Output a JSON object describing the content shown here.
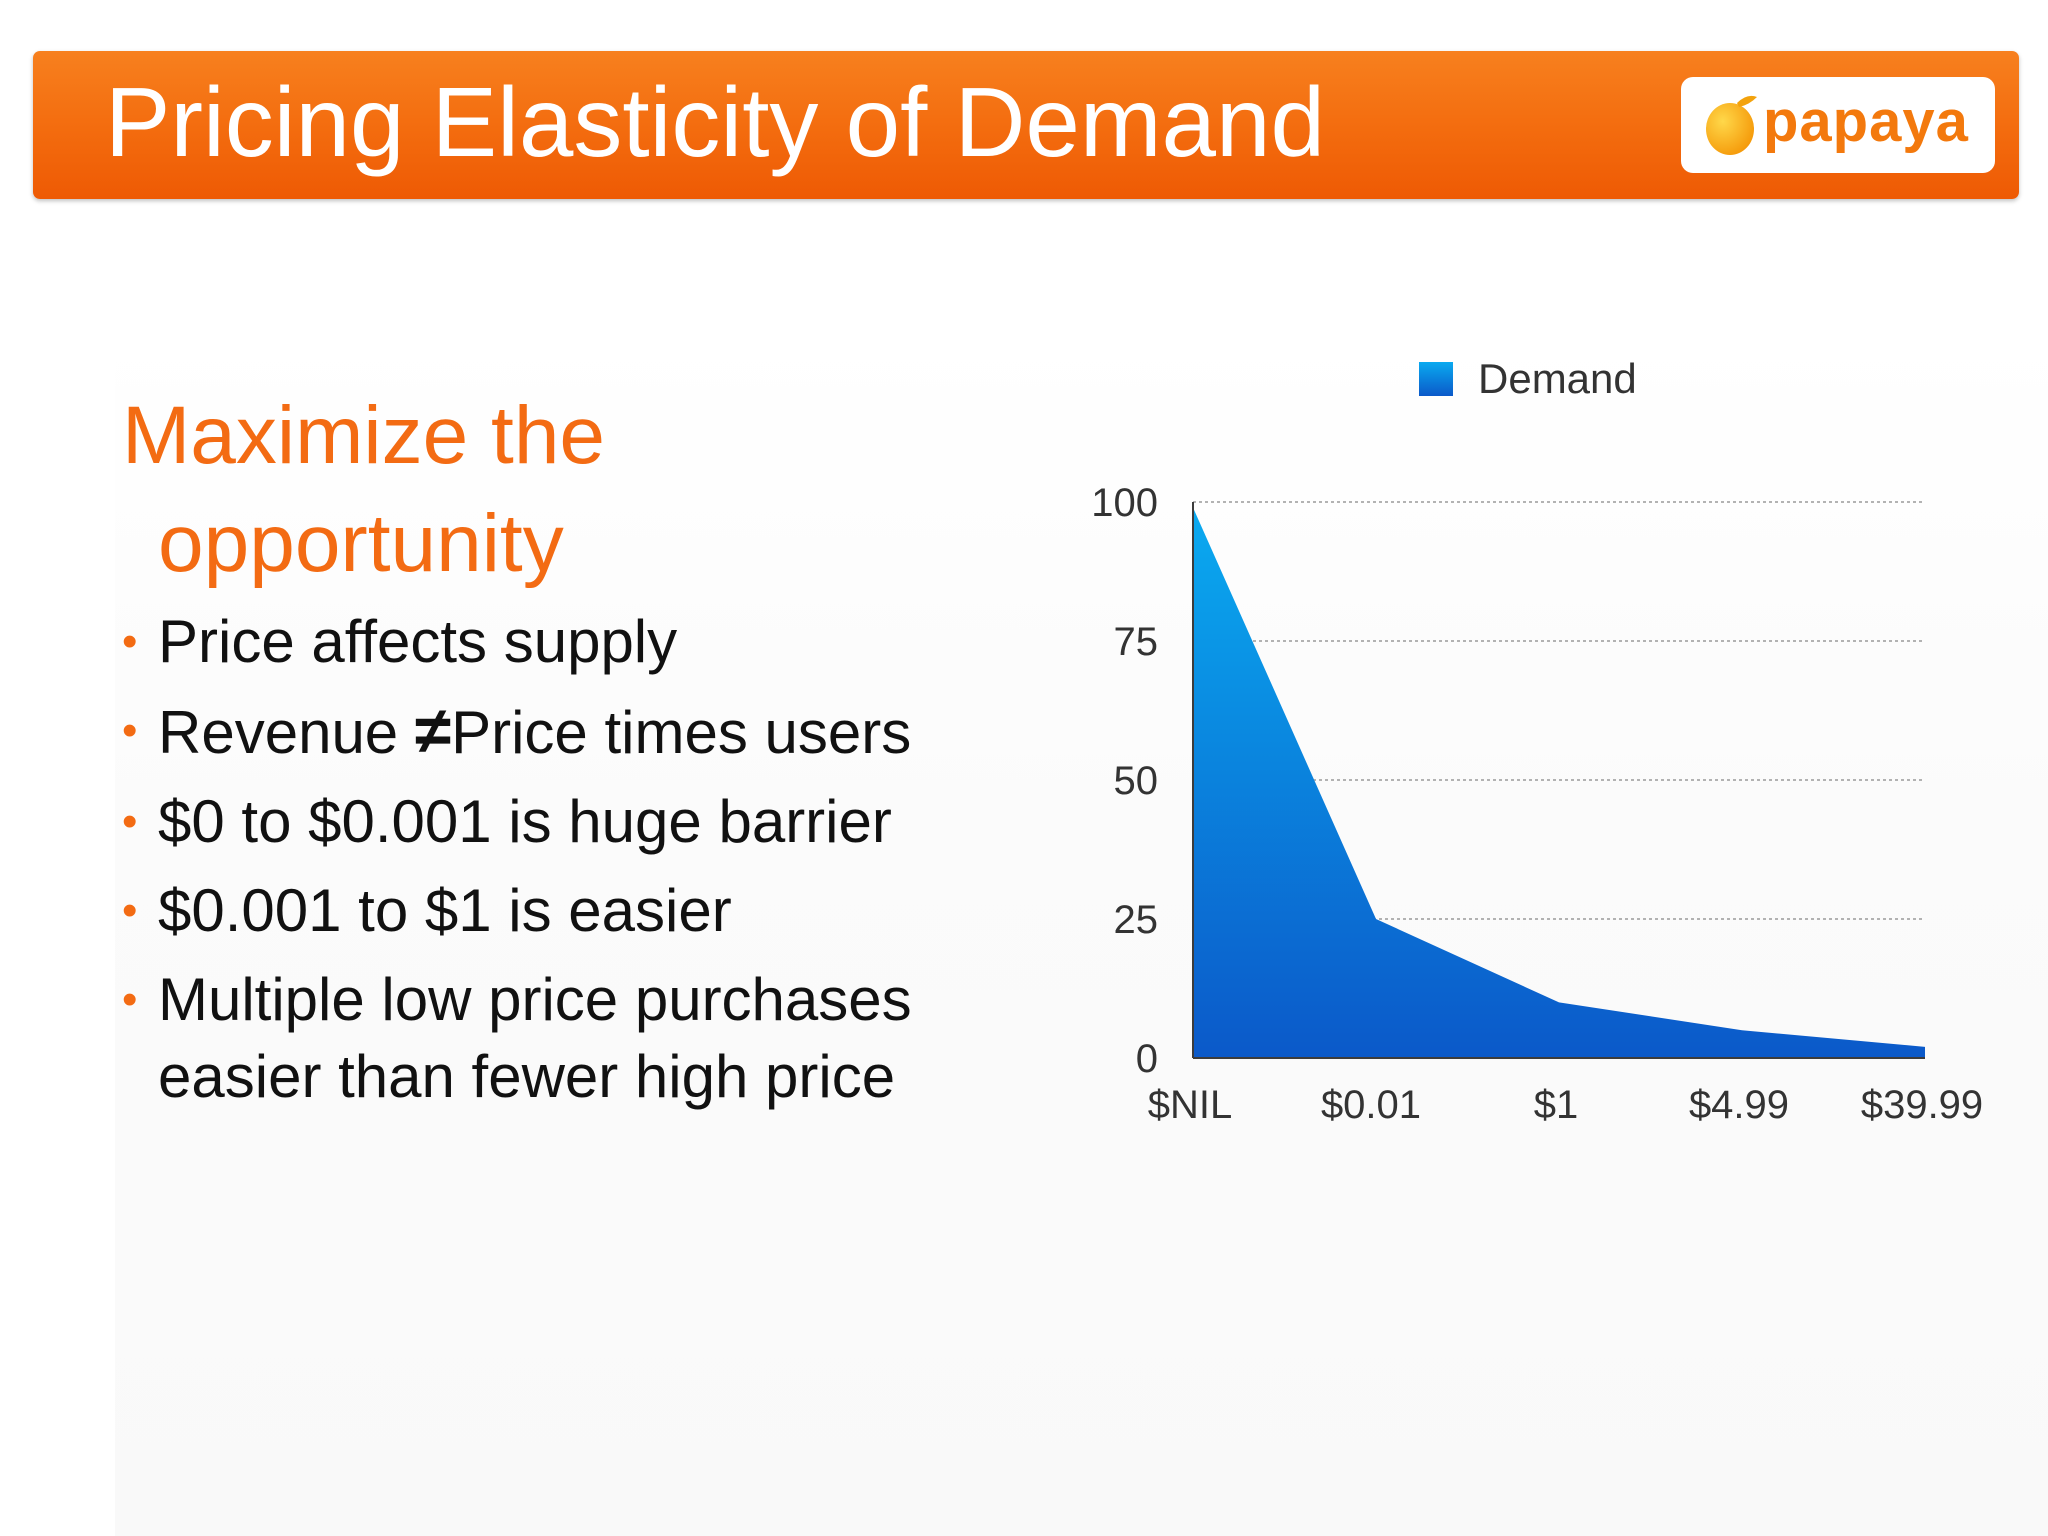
{
  "slide": {
    "title": "Pricing Elasticity of Demand",
    "logo_text": "papaya",
    "heading_line1": "Maximize the",
    "heading_line2": "opportunity",
    "bullets": [
      {
        "text": "Price affects supply"
      },
      {
        "text_before": "Revenue ",
        "symbol": "≠",
        "text_after": "Price times users"
      },
      {
        "text": "$0 to $0.001 is huge barrier"
      },
      {
        "text": "$0.001 to $1 is easier"
      },
      {
        "line1": "Multiple low price purchases",
        "line2": "easier than fewer high price"
      }
    ]
  },
  "colors": {
    "title_bar": "#f36b0e",
    "accent_text": "#f36b13",
    "area_top": "#0aaaf0",
    "area_bottom": "#0b59c9",
    "grid": "#9a9a9a"
  },
  "chart_data": {
    "type": "area",
    "categories": [
      "$NIL",
      "$0.01",
      "$1",
      "$4.99",
      "$39.99"
    ],
    "series": [
      {
        "name": "Demand",
        "values": [
          99,
          25,
          10,
          5,
          2
        ]
      }
    ],
    "y_ticks": [
      0,
      25,
      50,
      75,
      100
    ],
    "ylim": [
      0,
      100
    ],
    "grid": "horizontal dotted",
    "legend_position": "top"
  }
}
